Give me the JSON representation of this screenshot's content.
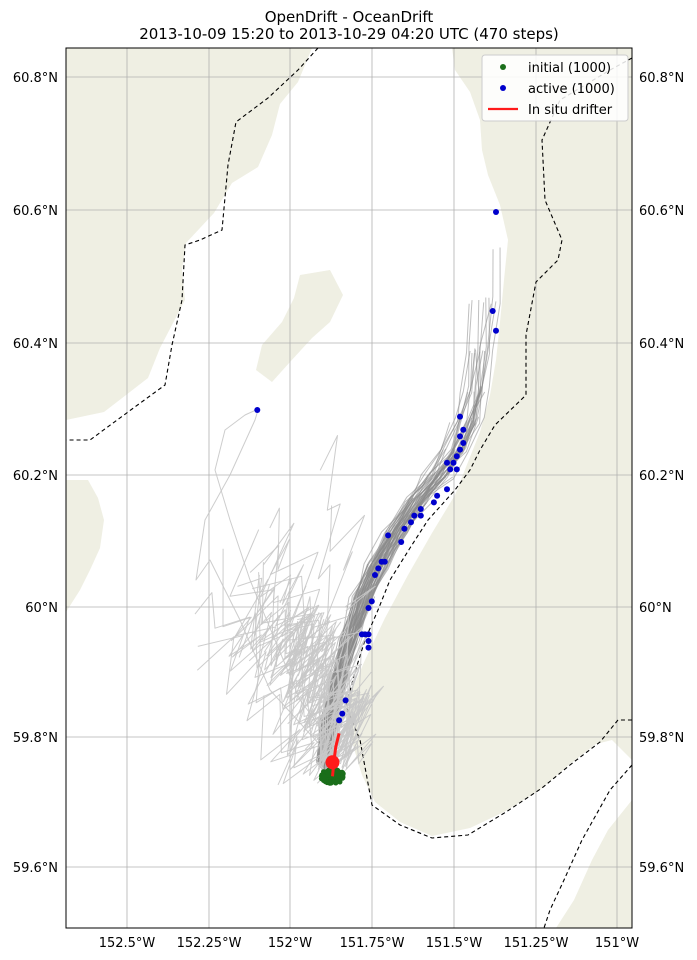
{
  "title": {
    "line1": "OpenDrift - OceanDrift",
    "line2": "2013-10-09 15:20 to 2013-10-29 04:20 UTC (470 steps)"
  },
  "colors": {
    "land": "#efefe3",
    "water": "#ffffff",
    "grid": "#b0b0b0",
    "trajectory": "#8a8a8a",
    "trajectory_faint": "#c8c8c8",
    "initial": "#1a6e1a",
    "active": "#0000cc",
    "drifter": "#ff1a1a",
    "border": "#000000"
  },
  "axes": {
    "lon_ticks": [
      "152.5°W",
      "152.25°W",
      "152°W",
      "151.75°W",
      "151.5°W",
      "151.25°W",
      "151°W"
    ],
    "lat_ticks_left": [
      "60.8°N",
      "60.6°N",
      "60.4°N",
      "60.2°N",
      "60°N",
      "59.8°N",
      "59.6°N"
    ],
    "lat_ticks_right": [
      "60.8°N",
      "60.6°N",
      "60.4°N",
      "60.2°N",
      "60°N",
      "59.8°N",
      "59.6°N"
    ],
    "lon_range": [
      -152.69,
      -150.96
    ],
    "lat_range": [
      59.5,
      60.845
    ]
  },
  "legend": {
    "position": "top-right",
    "initial_label": "initial (1000)",
    "active_label": "active (1000)",
    "drifter_label": "In situ drifter"
  },
  "map_features": {
    "land": [
      "western coast",
      "eastern coast (Kenai Peninsula)",
      "Kalgin Island",
      "southwest land",
      "southeast land"
    ],
    "borders": "dashed administrative boundaries"
  },
  "chart_data": {
    "type": "scatter",
    "x_axis": "longitude",
    "y_axis": "latitude",
    "grid": true,
    "series": [
      {
        "name": "active (1000)",
        "points": [
          [
            -152.1,
            60.3
          ],
          [
            -151.37,
            60.6
          ],
          [
            -151.38,
            60.45
          ],
          [
            -151.37,
            60.42
          ],
          [
            -151.48,
            60.29
          ],
          [
            -151.47,
            60.27
          ],
          [
            -151.48,
            60.26
          ],
          [
            -151.47,
            60.25
          ],
          [
            -151.48,
            60.24
          ],
          [
            -151.49,
            60.23
          ],
          [
            -151.5,
            60.22
          ],
          [
            -151.52,
            60.22
          ],
          [
            -151.49,
            60.21
          ],
          [
            -151.51,
            60.21
          ],
          [
            -151.52,
            60.18
          ],
          [
            -151.55,
            60.17
          ],
          [
            -151.56,
            60.16
          ],
          [
            -151.6,
            60.15
          ],
          [
            -151.62,
            60.14
          ],
          [
            -151.6,
            60.14
          ],
          [
            -151.63,
            60.13
          ],
          [
            -151.65,
            60.12
          ],
          [
            -151.66,
            60.1
          ],
          [
            -151.7,
            60.11
          ],
          [
            -151.71,
            60.07
          ],
          [
            -151.72,
            60.07
          ],
          [
            -151.73,
            60.06
          ],
          [
            -151.74,
            60.05
          ],
          [
            -151.75,
            60.01
          ],
          [
            -151.76,
            60.0
          ],
          [
            -151.76,
            59.96
          ],
          [
            -151.77,
            59.96
          ],
          [
            -151.78,
            59.96
          ],
          [
            -151.76,
            59.95
          ],
          [
            -151.76,
            59.94
          ],
          [
            -151.83,
            59.86
          ],
          [
            -151.84,
            59.84
          ],
          [
            -151.85,
            59.83
          ]
        ]
      },
      {
        "name": "initial (1000)",
        "center": [
          -151.87,
          59.745
        ]
      },
      {
        "name": "In situ drifter",
        "line": [
          [
            -151.85,
            59.81
          ],
          [
            -151.86,
            59.79
          ],
          [
            -151.865,
            59.77
          ],
          [
            -151.87,
            59.745
          ]
        ]
      }
    ]
  }
}
